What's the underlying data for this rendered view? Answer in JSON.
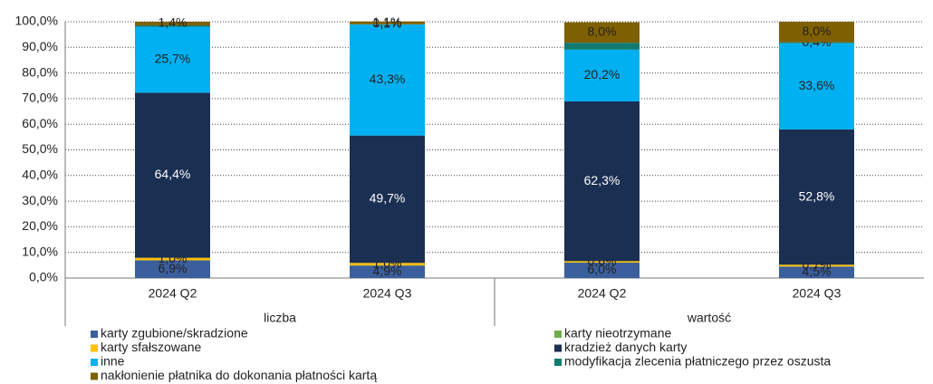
{
  "chart_data": {
    "type": "stacked_bar",
    "categories": [
      "2024 Q2",
      "2024 Q3",
      "2024 Q2",
      "2024 Q3"
    ],
    "groups": [
      {
        "label": "liczba",
        "span": 2
      },
      {
        "label": "wartość",
        "span": 2
      }
    ],
    "ylim": [
      0,
      100
    ],
    "yticks": [
      {
        "value": 0,
        "label": "0,0%"
      },
      {
        "value": 10,
        "label": "10,0%"
      },
      {
        "value": 20,
        "label": "20,0%"
      },
      {
        "value": 30,
        "label": "30,0%"
      },
      {
        "value": 40,
        "label": "40,0%"
      },
      {
        "value": 50,
        "label": "50,0%"
      },
      {
        "value": 60,
        "label": "60,0%"
      },
      {
        "value": 70,
        "label": "70,0%"
      },
      {
        "value": 80,
        "label": "80,0%"
      },
      {
        "value": 90,
        "label": "90,0%"
      },
      {
        "value": 100,
        "label": "100,0%"
      }
    ],
    "grid": true,
    "series": [
      {
        "name": "karty zgubione/skradzione",
        "color": "#3b5f9c",
        "values": [
          6.9,
          4.9,
          6.0,
          4.5
        ],
        "value_labels": [
          "6,9%",
          "4,9%",
          "6,0%",
          "4,5%"
        ]
      },
      {
        "name": "karty nieotrzymane",
        "color": "#70ad47",
        "values": [
          0,
          0,
          0,
          0
        ],
        "value_labels": [
          null,
          null,
          null,
          null
        ]
      },
      {
        "name": "karty sfałszowane",
        "color": "#ffc000",
        "values": [
          1.0,
          1.0,
          0.6,
          0.7
        ],
        "value_labels": [
          "1,0%",
          "1,0%",
          "0,6%",
          "0,7%"
        ]
      },
      {
        "name": "kradzież danych karty",
        "color": "#1b2f52",
        "values": [
          64.4,
          49.7,
          62.3,
          52.8
        ],
        "value_labels": [
          "64,4%",
          "49,7%",
          "62,3%",
          "52,8%"
        ]
      },
      {
        "name": "inne",
        "color": "#00b0f0",
        "values": [
          25.7,
          43.3,
          20.2,
          33.6
        ],
        "value_labels": [
          "25,7%",
          "43,3%",
          "20,2%",
          "33,6%"
        ]
      },
      {
        "name": "modyfikacja zlecenia płatniczego przez oszusta",
        "color": "#0f7b70",
        "values": [
          0.6,
          0.1,
          2.7,
          0.4
        ],
        "value_labels": [
          null,
          "0,1%",
          null,
          "0,4%"
        ]
      },
      {
        "name": "nakłonienie płatnika do dokonania płatności kartą",
        "color": "#7f6000",
        "values": [
          1.4,
          1.1,
          8.0,
          8.0
        ],
        "value_labels": [
          "1,4%",
          "1,1%",
          "8,0%",
          "8,0%"
        ]
      }
    ]
  }
}
